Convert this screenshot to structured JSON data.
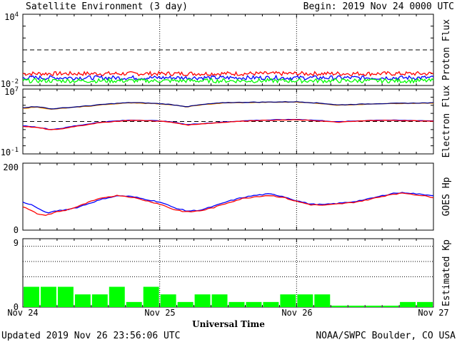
{
  "header": {
    "title": "Satellite Environment (3 day)",
    "begin": "Begin:  2019 Nov 24 0000 UTC"
  },
  "footer": {
    "updated": "Updated 2019 Nov 26 23:56:06 UTC",
    "credit": "NOAA/SWPC Boulder, CO USA"
  },
  "colors": {
    "red": "#ff0000",
    "blue": "#0000ff",
    "green": "#00ff00",
    "orange": "#ff9900",
    "navy": "#000080"
  },
  "chart_data": [
    {
      "type": "line",
      "ylabel": "Proton Flux",
      "yscale": "log",
      "ylim": [
        0.01,
        10000
      ],
      "y_ticks": [
        {
          "base": "10",
          "exp": "4",
          "value": 10000
        },
        {
          "base": "10",
          "exp": "-2",
          "value": 0.01
        }
      ],
      "threshold": 10,
      "series": [
        {
          "color": "#ff0000",
          "x": [
            0,
            0.5,
            1,
            1.5,
            2,
            2.5,
            3
          ],
          "y": [
            0.1,
            0.1,
            0.1,
            0.1,
            0.1,
            0.1,
            0.1
          ]
        },
        {
          "color": "#0000ff",
          "x": [
            0,
            0.5,
            1,
            1.5,
            2,
            2.5,
            3
          ],
          "y": [
            0.045,
            0.045,
            0.045,
            0.045,
            0.045,
            0.045,
            0.045
          ]
        },
        {
          "color": "#00ff00",
          "x": [
            0,
            0.5,
            1,
            1.5,
            2,
            2.5,
            3
          ],
          "y": [
            0.025,
            0.025,
            0.025,
            0.025,
            0.025,
            0.025,
            0.025
          ]
        }
      ]
    },
    {
      "type": "line",
      "ylabel": "Electron Flux",
      "yscale": "log",
      "ylim": [
        0.1,
        10000000
      ],
      "y_ticks": [
        {
          "base": "10",
          "exp": "7",
          "value": 10000000
        },
        {
          "base": "10",
          "exp": "-1",
          "value": 0.1
        }
      ],
      "threshold": 1000,
      "series": [
        {
          "color": "#ff9900",
          "x": [
            0,
            0.1,
            0.2,
            0.35,
            0.5,
            0.8,
            1.0,
            1.2,
            1.5,
            2.0,
            2.3,
            2.6,
            3.0
          ],
          "y": [
            40000,
            60000,
            30000,
            50000,
            80000,
            200000,
            150000,
            60000,
            200000,
            250000,
            100000,
            150000,
            180000
          ]
        },
        {
          "color": "#000080",
          "x": [
            0,
            0.1,
            0.2,
            0.35,
            0.5,
            0.8,
            1.0,
            1.2,
            1.5,
            2.0,
            2.3,
            2.6,
            3.0
          ],
          "y": [
            50000,
            70000,
            35000,
            55000,
            90000,
            220000,
            160000,
            65000,
            220000,
            270000,
            110000,
            160000,
            200000
          ]
        },
        {
          "color": "#0000ff",
          "x": [
            0,
            0.1,
            0.2,
            0.3,
            0.45,
            0.6,
            0.8,
            1.0,
            1.2,
            1.4,
            1.7,
            2.0,
            2.3,
            2.6,
            3.0
          ],
          "y": [
            300,
            200,
            100,
            150,
            400,
            900,
            1500,
            1200,
            400,
            700,
            1400,
            1800,
            900,
            1500,
            1200
          ]
        },
        {
          "color": "#ff0000",
          "x": [
            0,
            0.1,
            0.2,
            0.3,
            0.45,
            0.6,
            0.8,
            1.0,
            1.2,
            1.4,
            1.7,
            2.0,
            2.3,
            2.6,
            3.0
          ],
          "y": [
            250,
            180,
            90,
            130,
            350,
            800,
            1400,
            1100,
            350,
            650,
            1300,
            1600,
            800,
            1400,
            1100
          ]
        }
      ]
    },
    {
      "type": "line",
      "ylabel": "GOES Hp",
      "ylim": [
        0,
        200
      ],
      "y_ticks": [
        "200",
        "0"
      ],
      "series": [
        {
          "color": "#0000ff",
          "x": [
            0,
            0.05,
            0.1,
            0.15,
            0.2,
            0.25,
            0.3,
            0.4,
            0.5,
            0.6,
            0.7,
            0.8,
            0.9,
            1.0,
            1.1,
            1.2,
            1.3,
            1.4,
            1.5,
            1.6,
            1.7,
            1.8,
            1.9,
            2.0,
            2.1,
            2.2,
            2.3,
            2.4,
            2.5,
            2.6,
            2.7,
            2.8,
            2.9,
            3.0
          ],
          "y": [
            83,
            78,
            68,
            55,
            52,
            58,
            60,
            68,
            82,
            95,
            103,
            100,
            92,
            84,
            68,
            57,
            60,
            72,
            86,
            97,
            104,
            108,
            101,
            88,
            78,
            76,
            80,
            84,
            91,
            100,
            110,
            112,
            107,
            104
          ]
        },
        {
          "color": "#ff0000",
          "x": [
            0,
            0.05,
            0.1,
            0.15,
            0.2,
            0.25,
            0.3,
            0.4,
            0.5,
            0.6,
            0.7,
            0.8,
            0.9,
            1.0,
            1.1,
            1.2,
            1.3,
            1.4,
            1.5,
            1.6,
            1.7,
            1.8,
            1.9,
            2.0,
            2.1,
            2.2,
            2.3,
            2.4,
            2.5,
            2.6,
            2.7,
            2.8,
            2.9,
            3.0
          ],
          "y": [
            70,
            60,
            50,
            44,
            48,
            55,
            58,
            70,
            86,
            98,
            104,
            98,
            88,
            78,
            62,
            54,
            58,
            68,
            82,
            94,
            100,
            104,
            98,
            86,
            76,
            74,
            78,
            82,
            89,
            98,
            108,
            110,
            104,
            98
          ]
        }
      ]
    },
    {
      "type": "bar",
      "ylabel": "Estimated Kp",
      "ylim": [
        0,
        9
      ],
      "y_ticks": [
        "9",
        "0"
      ],
      "hlines": [
        4,
        6,
        8
      ],
      "bar_color": "#00ff00",
      "values": [
        2.67,
        2.67,
        2.67,
        1.67,
        1.67,
        2.67,
        0.67,
        2.67,
        1.67,
        0.67,
        1.67,
        1.67,
        0.67,
        0.67,
        0.67,
        1.67,
        1.67,
        1.67,
        0.0,
        0.0,
        0.0,
        0.0,
        0.67,
        0.67
      ]
    }
  ],
  "x_axis": {
    "label": "Universal Time",
    "ticks": [
      "Nov 24",
      "Nov 25",
      "Nov 26",
      "Nov 27"
    ],
    "day_lines": [
      1,
      2
    ]
  }
}
